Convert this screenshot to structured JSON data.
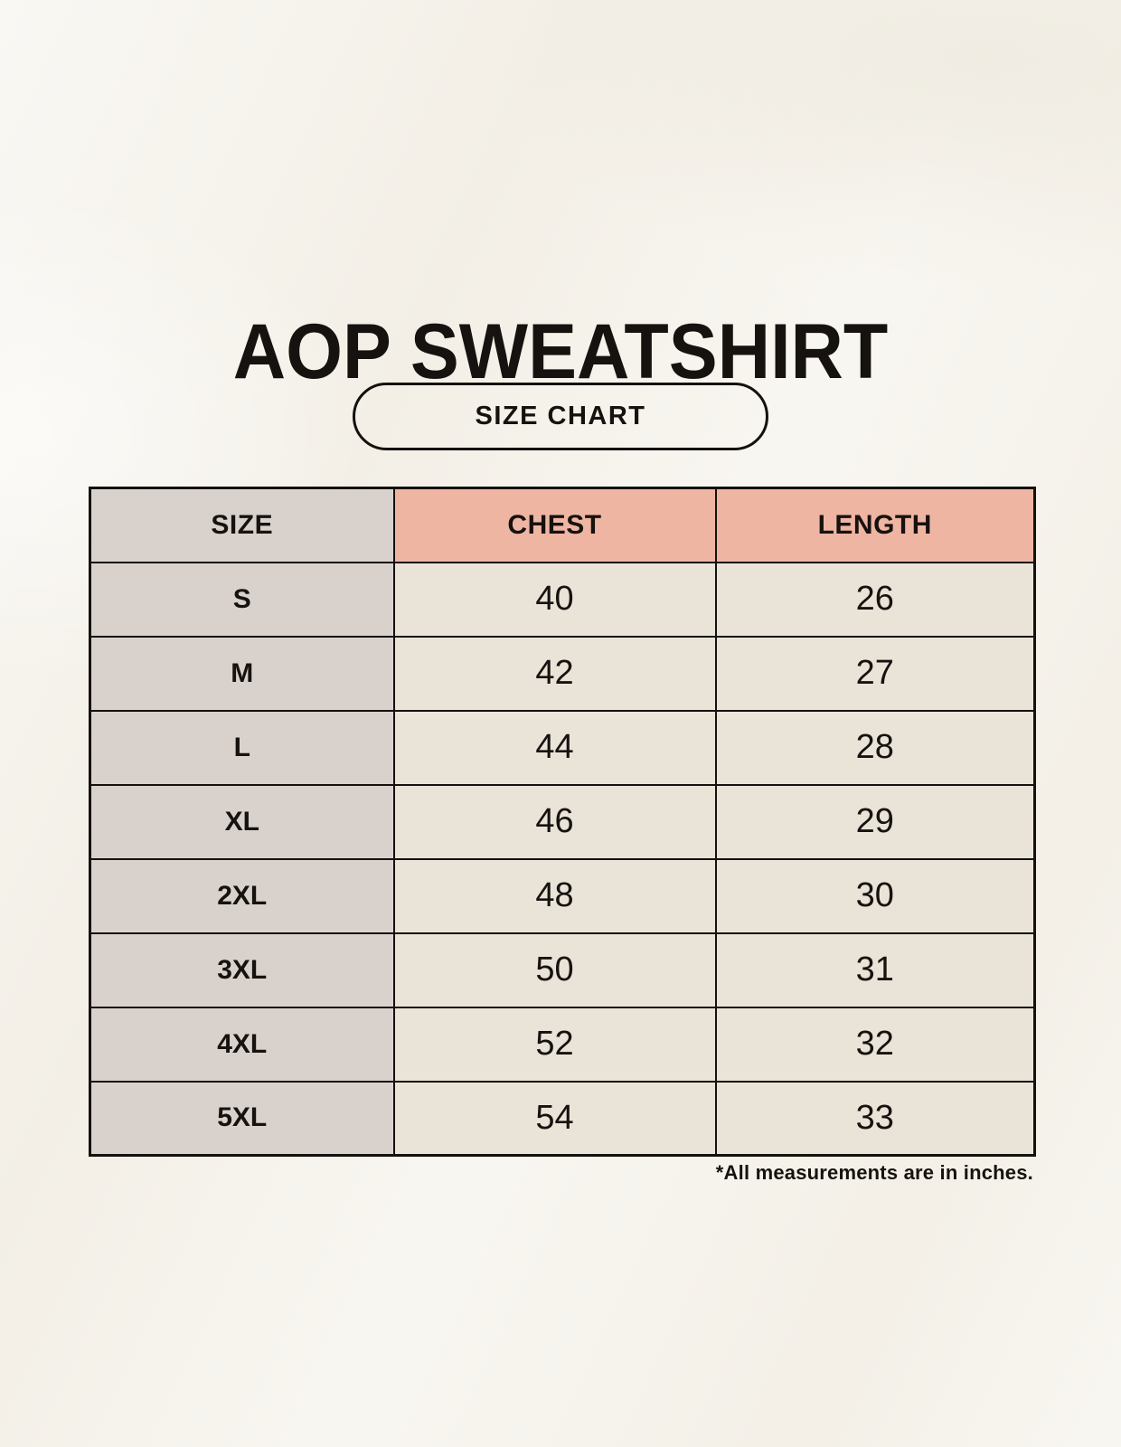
{
  "page": {
    "title": "AOP SWEATSHIRT",
    "badge_label": "SIZE CHART",
    "footnote": "*All measurements are in inches."
  },
  "colors": {
    "background": "#f6f3ec",
    "header_accent": "#efb5a3",
    "size_column_gray": "#d9d2cc",
    "value_cell_cream": "#eae3d8",
    "border_black": "#14110e",
    "text_black": "#16120f"
  },
  "chart_data": {
    "type": "table",
    "title": "AOP SWEATSHIRT",
    "subtitle": "SIZE CHART",
    "columns": [
      "SIZE",
      "CHEST",
      "LENGTH"
    ],
    "rows": [
      [
        "S",
        "40",
        "26"
      ],
      [
        "M",
        "42",
        "27"
      ],
      [
        "L",
        "44",
        "28"
      ],
      [
        "XL",
        "46",
        "29"
      ],
      [
        "2XL",
        "48",
        "30"
      ],
      [
        "3XL",
        "50",
        "31"
      ],
      [
        "4XL",
        "52",
        "32"
      ],
      [
        "5XL",
        "54",
        "33"
      ]
    ],
    "footnote": "*All measurements are in inches.",
    "units": "inches"
  }
}
